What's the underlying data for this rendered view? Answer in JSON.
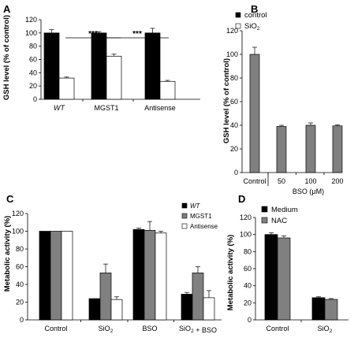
{
  "chart_data": [
    {
      "panel": "A",
      "type": "bar",
      "ylabel": "GSH level (% of control)",
      "ylim": [
        0,
        120
      ],
      "yticks": [
        0,
        20,
        40,
        60,
        80,
        100,
        120
      ],
      "categories": [
        "WT",
        "MGST1",
        "Antisense"
      ],
      "series": [
        {
          "name": "control",
          "color": "#000000",
          "values": [
            100,
            100,
            100
          ],
          "errors": [
            5,
            2,
            7
          ]
        },
        {
          "name": "SiO2",
          "color": "#ffffff",
          "values": [
            32,
            65,
            27
          ],
          "errors": [
            1.5,
            3,
            1.5
          ]
        }
      ],
      "significance": [
        {
          "between": [
            "WT",
            "MGST1"
          ],
          "label": "***"
        },
        {
          "between": [
            "MGST1",
            "Antisense"
          ],
          "label": "***"
        }
      ],
      "legend": "top-right"
    },
    {
      "panel": "B",
      "type": "bar",
      "ylabel": "GSH level (% of control)",
      "xlabel": "BSO (µM)",
      "ylim": [
        0,
        120
      ],
      "yticks": [
        0,
        20,
        40,
        60,
        80,
        100,
        120
      ],
      "categories": [
        "Control",
        "50",
        "100",
        "200"
      ],
      "series": [
        {
          "color": "#808080",
          "values": [
            100,
            39,
            40,
            39.5
          ],
          "errors": [
            6,
            1,
            2,
            0.8
          ]
        }
      ]
    },
    {
      "panel": "C",
      "type": "bar",
      "ylabel": "Metabolic activity (%)",
      "ylim": [
        0,
        120
      ],
      "yticks": [
        0,
        20,
        40,
        60,
        80,
        100,
        120
      ],
      "categories": [
        "Control",
        "SiO2",
        "BSO",
        "SiO2 + BSO"
      ],
      "series": [
        {
          "name": "WT",
          "color": "#000000",
          "values": [
            100,
            24,
            102,
            29
          ],
          "errors": [
            0,
            0,
            1.5,
            2
          ]
        },
        {
          "name": "MGST1",
          "color": "#808080",
          "values": [
            100,
            53,
            101,
            53
          ],
          "errors": [
            0,
            10,
            10,
            7
          ]
        },
        {
          "name": "Antisense",
          "color": "#ffffff",
          "values": [
            100,
            23,
            98,
            25
          ],
          "errors": [
            0,
            3,
            2,
            8
          ]
        }
      ],
      "legend": "top-right"
    },
    {
      "panel": "D",
      "type": "bar",
      "ylabel": "Metabolic activity (%)",
      "ylim": [
        0,
        120
      ],
      "yticks": [
        0,
        20,
        40,
        60,
        80,
        100,
        120
      ],
      "categories": [
        "Control",
        "SiO2"
      ],
      "series": [
        {
          "name": "Medium",
          "color": "#000000",
          "values": [
            100,
            26
          ],
          "errors": [
            2,
            1
          ]
        },
        {
          "name": "NAC",
          "color": "#808080",
          "values": [
            96,
            24
          ],
          "errors": [
            2.5,
            1
          ]
        }
      ],
      "legend": "top-right"
    }
  ]
}
